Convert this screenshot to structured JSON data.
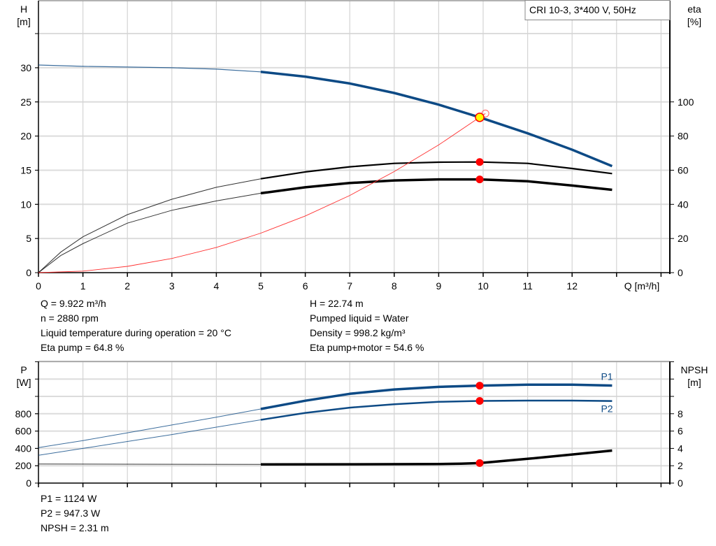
{
  "chart_data": [
    {
      "type": "line",
      "title": "CRI 10-3, 3*400 V, 50Hz",
      "xlabel": "Q [m³/h]",
      "ylabel": "H\n[m]",
      "ylabel_parts": [
        "H",
        "[m]"
      ],
      "y2label_parts": [
        "eta",
        "[%]"
      ],
      "xlim": [
        0,
        14
      ],
      "ylim": [
        0,
        40
      ],
      "y2lim": [
        0,
        160
      ],
      "xticks": [
        "0",
        "1",
        "2",
        "3",
        "4",
        "5",
        "6",
        "7",
        "8",
        "9",
        "10",
        "11",
        "12"
      ],
      "yticks": [
        "0",
        "5",
        "10",
        "15",
        "20",
        "25",
        "30"
      ],
      "y2ticks": [
        "0",
        "20",
        "40",
        "60",
        "80",
        "100"
      ],
      "grid": true,
      "duty_point": {
        "Q": 9.922,
        "H": 22.74,
        "eta_pump": 64.8,
        "eta_total": 54.6
      },
      "series": [
        {
          "key": "H",
          "axis": "left",
          "color": "#0d4a85",
          "x": [
            0,
            1,
            2,
            3,
            4,
            5,
            6,
            7,
            8,
            9,
            9.922,
            11,
            12,
            12.9
          ],
          "y": [
            30.4,
            30.2,
            30.1,
            30.0,
            29.8,
            29.4,
            28.7,
            27.7,
            26.3,
            24.6,
            22.74,
            20.4,
            18.0,
            15.6
          ]
        },
        {
          "key": "eta_pump",
          "axis": "right",
          "color": "#000000",
          "x": [
            0,
            0.5,
            1,
            2,
            3,
            4,
            5,
            6,
            7,
            8,
            9,
            9.922,
            11,
            12,
            12.9
          ],
          "y": [
            0,
            12,
            21,
            34,
            43,
            50,
            55,
            59,
            62,
            64,
            64.7,
            64.8,
            64,
            61,
            58
          ]
        },
        {
          "key": "eta_total",
          "axis": "right",
          "color": "#000000",
          "x": [
            0,
            0.5,
            1,
            2,
            3,
            4,
            5,
            6,
            7,
            8,
            9,
            9.922,
            11,
            12,
            12.9
          ],
          "y": [
            0,
            10,
            17,
            29,
            36.5,
            42,
            46.5,
            50,
            52.5,
            54,
            54.6,
            54.6,
            53.5,
            51,
            48.5
          ]
        },
        {
          "key": "system",
          "axis": "left",
          "color": "#ff3030",
          "x": [
            0,
            1,
            2,
            3,
            4,
            5,
            6,
            7,
            8,
            9,
            9.922,
            10.05
          ],
          "y": [
            0,
            0.23,
            0.92,
            2.08,
            3.7,
            5.78,
            8.3,
            11.3,
            14.8,
            18.7,
            22.74,
            23.3
          ]
        }
      ]
    },
    {
      "type": "line",
      "ylabel_parts": [
        "P",
        "[W]"
      ],
      "y2label_parts": [
        "NPSH",
        "[m]"
      ],
      "xlim": [
        0,
        14
      ],
      "ylim": [
        0,
        1400
      ],
      "y2lim": [
        0,
        14
      ],
      "yticks": [
        "0",
        "200",
        "400",
        "600",
        "800"
      ],
      "y2ticks": [
        "0",
        "2",
        "4",
        "6",
        "8"
      ],
      "grid": true,
      "series": [
        {
          "name": "P1",
          "axis": "left",
          "color": "#0d4a85",
          "x": [
            0,
            1,
            2,
            3,
            4,
            5,
            6,
            7,
            8,
            9,
            9.922,
            11,
            12,
            12.9
          ],
          "y": [
            410,
            490,
            580,
            670,
            760,
            855,
            950,
            1030,
            1080,
            1110,
            1124,
            1135,
            1135,
            1125
          ]
        },
        {
          "name": "P2",
          "axis": "left",
          "color": "#0d4a85",
          "x": [
            0,
            1,
            2,
            3,
            4,
            5,
            6,
            7,
            8,
            9,
            9.922,
            11,
            12,
            12.9
          ],
          "y": [
            320,
            400,
            480,
            560,
            645,
            730,
            810,
            870,
            910,
            937,
            947.3,
            952,
            952,
            947
          ]
        },
        {
          "key": "NPSH",
          "axis": "right",
          "color": "#000000",
          "x": [
            0,
            2,
            5,
            7,
            9,
            9.5,
            9.922,
            11,
            12,
            12.9
          ],
          "y": [
            2.2,
            2.18,
            2.15,
            2.17,
            2.2,
            2.24,
            2.31,
            2.8,
            3.3,
            3.75
          ]
        }
      ],
      "duty_point": {
        "Q": 9.922,
        "P1": 1124,
        "P2": 947.3,
        "NPSH": 2.31
      }
    }
  ],
  "info_top_left": [
    "Q = 9.922 m³/h",
    "n = 2880 rpm",
    "Liquid temperature during operation = 20 °C",
    "Eta pump = 64.8 %"
  ],
  "info_top_right": [
    "H = 22.74 m",
    "Pumped liquid = Water",
    "Density = 998.2 kg/m³",
    "Eta pump+motor = 54.6 %"
  ],
  "info_bottom": [
    "P1 = 1124 W",
    "P2 = 947.3 W",
    "NPSH = 2.31 m"
  ]
}
